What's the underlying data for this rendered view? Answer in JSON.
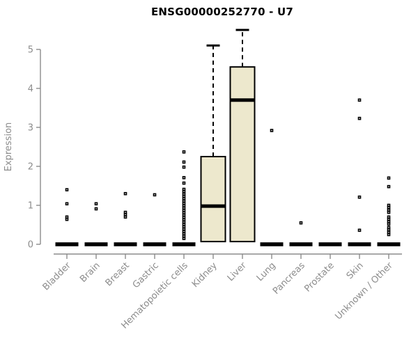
{
  "chart_data": {
    "type": "boxplot",
    "title": "ENSG00000252770 - U7",
    "ylabel": "Expression",
    "xlabel": "",
    "ylim": [
      0,
      5
    ],
    "yticks": [
      0,
      1,
      2,
      3,
      4,
      5
    ],
    "grid": "off",
    "colors": {
      "box_fill": "#EDE8CD",
      "box_stroke": "#000000",
      "median": "#000000",
      "outlier": "#000000",
      "axis": "#8C8C8C",
      "text": "#8C8C8C",
      "title": "#000000",
      "background": "#FFFFFF"
    },
    "categories": [
      "Bladder",
      "Brain",
      "Breast",
      "Gastric",
      "Hematopoietic cells",
      "Kidney",
      "Liver",
      "Lung",
      "Pancreas",
      "Prostate",
      "Skin",
      "Unknown / Other"
    ],
    "series": [
      {
        "name": "Bladder",
        "q1": 0,
        "median": 0,
        "q3": 0,
        "whisker_low": 0,
        "whisker_high": 0,
        "outliers": [
          1.4,
          1.04,
          0.7,
          0.64
        ]
      },
      {
        "name": "Brain",
        "q1": 0,
        "median": 0,
        "q3": 0,
        "whisker_low": 0,
        "whisker_high": 0,
        "outliers": [
          1.04,
          0.91
        ]
      },
      {
        "name": "Breast",
        "q1": 0,
        "median": 0,
        "q3": 0,
        "whisker_low": 0,
        "whisker_high": 0,
        "outliers": [
          1.3,
          0.82,
          0.76,
          0.7
        ]
      },
      {
        "name": "Gastric",
        "q1": 0,
        "median": 0,
        "q3": 0,
        "whisker_low": 0,
        "whisker_high": 0,
        "outliers": [
          1.27
        ]
      },
      {
        "name": "Hematopoietic cells",
        "q1": 0,
        "median": 0,
        "q3": 0,
        "whisker_low": 0,
        "whisker_high": 0,
        "outliers": [
          2.37,
          2.11,
          1.98,
          1.71,
          1.57,
          1.41,
          1.35,
          1.29,
          1.23,
          1.17,
          1.11,
          1.05,
          0.99,
          0.93,
          0.87,
          0.81,
          0.75,
          0.69,
          0.63,
          0.57,
          0.51,
          0.45,
          0.39,
          0.33,
          0.27,
          0.21,
          0.15
        ]
      },
      {
        "name": "Kidney",
        "q1": 0.07,
        "median": 0.98,
        "q3": 2.25,
        "whisker_low": 0.07,
        "whisker_high": 5.1,
        "outliers": []
      },
      {
        "name": "Liver",
        "q1": 0.07,
        "median": 3.7,
        "q3": 4.55,
        "whisker_low": 0.07,
        "whisker_high": 5.5,
        "outliers": []
      },
      {
        "name": "Lung",
        "q1": 0,
        "median": 0,
        "q3": 0,
        "whisker_low": 0,
        "whisker_high": 0,
        "outliers": [
          2.92
        ]
      },
      {
        "name": "Pancreas",
        "q1": 0,
        "median": 0,
        "q3": 0,
        "whisker_low": 0,
        "whisker_high": 0,
        "outliers": [
          0.55
        ]
      },
      {
        "name": "Prostate",
        "q1": 0,
        "median": 0,
        "q3": 0,
        "whisker_low": 0,
        "whisker_high": 0,
        "outliers": []
      },
      {
        "name": "Skin",
        "q1": 0,
        "median": 0,
        "q3": 0,
        "whisker_low": 0,
        "whisker_high": 0,
        "outliers": [
          3.7,
          3.23,
          1.21,
          0.36
        ]
      },
      {
        "name": "Unknown / Other",
        "q1": 0,
        "median": 0,
        "q3": 0,
        "whisker_low": 0,
        "whisker_high": 0,
        "outliers": [
          1.7,
          1.48,
          1.0,
          0.94,
          0.88,
          0.82,
          0.7,
          0.64,
          0.58,
          0.52,
          0.43,
          0.37,
          0.31,
          0.25
        ]
      }
    ]
  }
}
